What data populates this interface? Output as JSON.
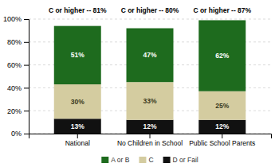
{
  "chart_data": {
    "type": "bar",
    "stacked": true,
    "categories": [
      "National",
      "No Children in School",
      "Public School Parents"
    ],
    "series": [
      {
        "name": "D or Fail",
        "color": "#111111",
        "values": [
          13,
          12,
          12
        ],
        "value_labels": [
          "13%",
          "12%",
          "12%"
        ]
      },
      {
        "name": "C",
        "color": "#d4cca0",
        "values": [
          30,
          33,
          25
        ],
        "value_labels": [
          "30%",
          "33%",
          "25%"
        ]
      },
      {
        "name": "A or B",
        "color": "#1e6b1e",
        "values": [
          51,
          47,
          62
        ],
        "value_labels": [
          "51%",
          "47%",
          "62%"
        ]
      }
    ],
    "annotations": [
      "C or higher -- 81%",
      "C or higher -- 80%",
      "C or higher -- 87%"
    ],
    "ylim": [
      0,
      100
    ],
    "yticks": [
      {
        "value": 0,
        "label": "0%"
      },
      {
        "value": 20,
        "label": "20%"
      },
      {
        "value": 40,
        "label": "40%"
      },
      {
        "value": 60,
        "label": "60%"
      },
      {
        "value": 80,
        "label": "80%"
      },
      {
        "value": 100,
        "label": "100%"
      }
    ],
    "grid": true,
    "data_labels": true,
    "legend": "bottom"
  }
}
